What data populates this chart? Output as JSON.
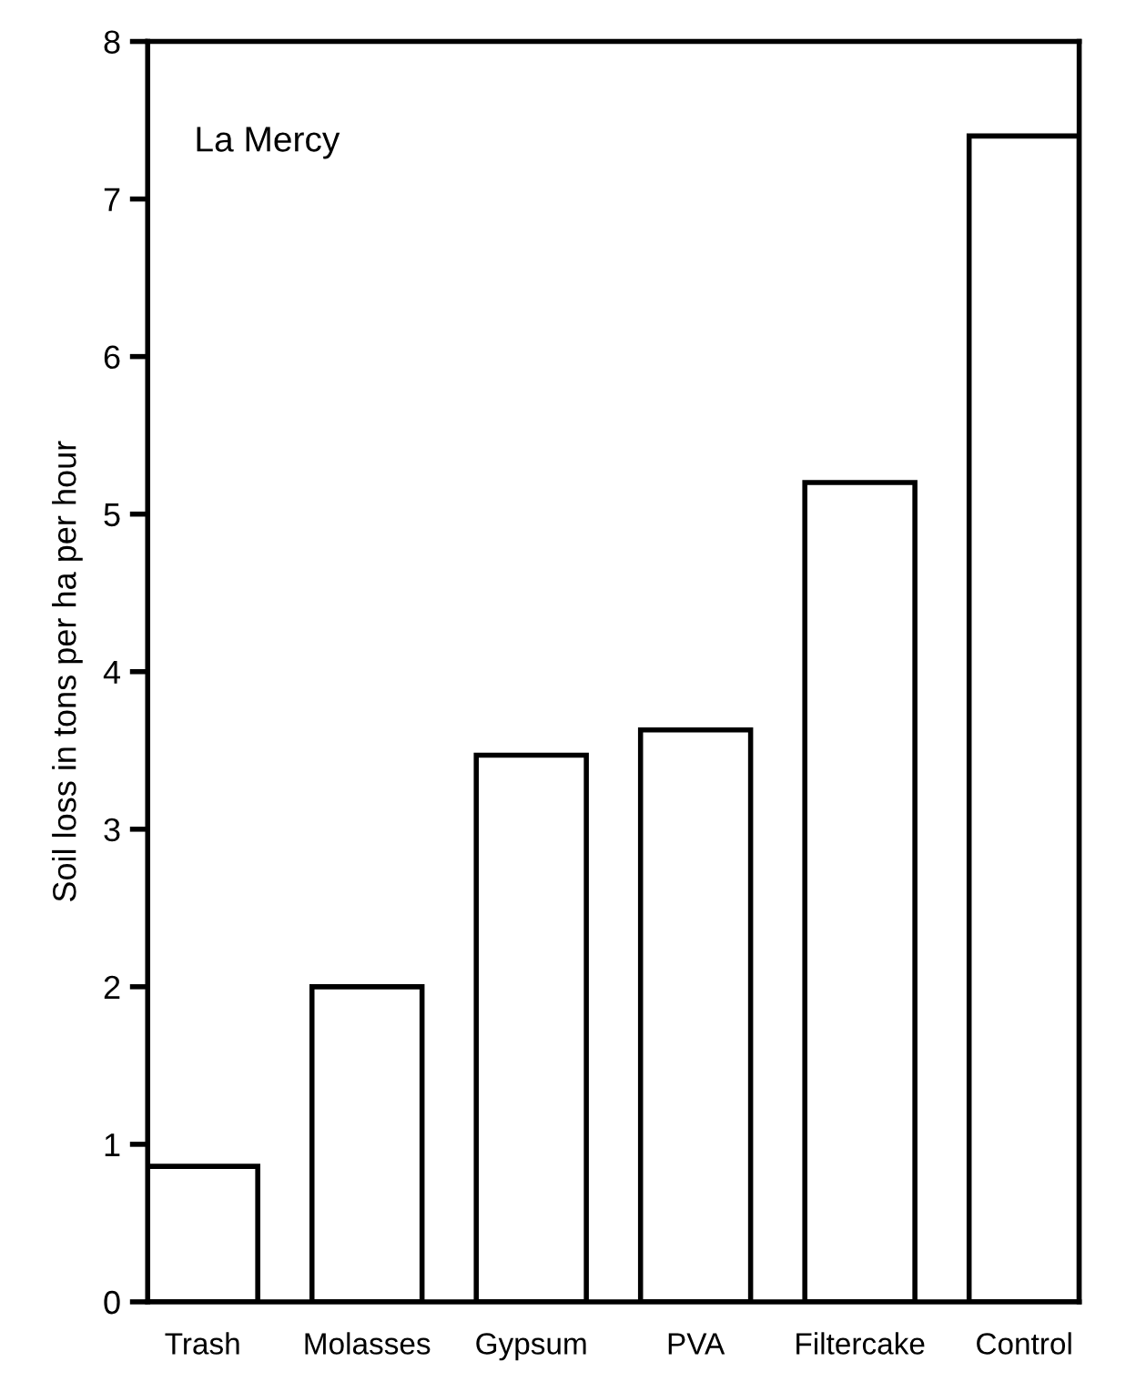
{
  "chart_data": {
    "type": "bar",
    "ylabel": "Soil loss in tons per ha per hour",
    "annotations": [
      "La Mercy"
    ],
    "categories": [
      "Trash",
      "Molasses",
      "Gypsum",
      "PVA",
      "Filtercake",
      "Control"
    ],
    "values": [
      0.86,
      2.0,
      3.47,
      3.63,
      5.2,
      7.4
    ],
    "color": "#ffffff",
    "ylim": [
      0,
      8
    ],
    "yticks": [
      0,
      1,
      2,
      3,
      4,
      5,
      6,
      7,
      8
    ],
    "grid": false
  }
}
